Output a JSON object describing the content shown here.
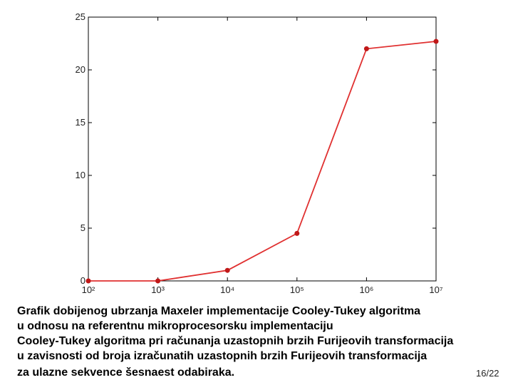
{
  "chart_data": {
    "type": "line",
    "xscale": "log",
    "x": [
      100,
      1000,
      10000,
      100000,
      1000000,
      10000000
    ],
    "values": [
      0,
      0,
      1,
      4.5,
      22,
      22.7
    ],
    "color": "#e03030",
    "marker_color": "#c01818",
    "xlim": [
      100,
      10000000
    ],
    "xticks": [
      {
        "value": 100,
        "label": "10²"
      },
      {
        "value": 1000,
        "label": "10³"
      },
      {
        "value": 10000,
        "label": "10⁴"
      },
      {
        "value": 100000,
        "label": "10⁵"
      },
      {
        "value": 1000000,
        "label": "10⁶"
      },
      {
        "value": 10000000,
        "label": "10⁷"
      }
    ],
    "ylim": [
      0,
      25
    ],
    "yticks": [
      0,
      5,
      10,
      15,
      20,
      25
    ],
    "grid": false
  },
  "caption": [
    "Grafik dobijenog ubrzanja Maxeler implementacije Cooley-Tukey algoritma",
    "u odnosu na referentnu mikroprocesorsku implementaciju",
    "Cooley-Tukey algoritma pri računanja uzastopnih brzih Furijeovih transformacija",
    "u zavisnosti od broja izračunatih uzastopnih brzih Furijeovih transformacija",
    "za ulazne sekvence šesnaest odabiraka."
  ],
  "page_number": "16/22"
}
